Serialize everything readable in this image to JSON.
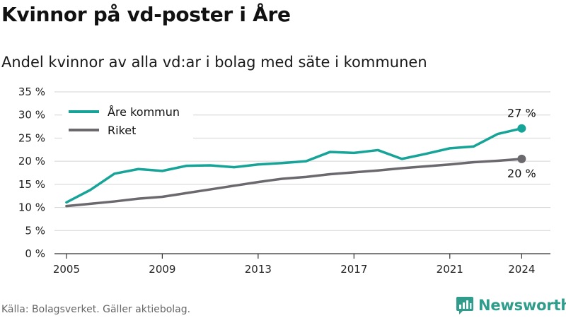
{
  "title": "Kvinnor på vd-poster i Åre",
  "subtitle": "Andel kvinnor av alla vd:ar i bolag med säte i kommunen",
  "source": "Källa: Bolagsverket. Gäller aktiebolag.",
  "brand": {
    "name": "Newsworthy",
    "logo_icon": "newsworthy-logo-icon"
  },
  "colors": {
    "are": "#16a398",
    "riket": "#6b686e",
    "grid": "#d4d4d4",
    "axis": "#333333",
    "brand": "#2f9c8c"
  },
  "chart_data": {
    "type": "line",
    "title": "Kvinnor på vd-poster i Åre",
    "subtitle": "Andel kvinnor av alla vd:ar i bolag med säte i kommunen",
    "xlabel": "",
    "ylabel": "",
    "x": [
      2005,
      2006,
      2007,
      2008,
      2009,
      2010,
      2011,
      2012,
      2013,
      2014,
      2015,
      2016,
      2017,
      2018,
      2019,
      2020,
      2021,
      2022,
      2023,
      2024
    ],
    "xticks": [
      2005,
      2009,
      2013,
      2017,
      2021,
      2024
    ],
    "xtick_labels": [
      "2005",
      "2009",
      "2013",
      "2017",
      "2021",
      "2024"
    ],
    "ylim": [
      0,
      35
    ],
    "yticks": [
      0,
      5,
      10,
      15,
      20,
      25,
      30,
      35
    ],
    "ytick_labels": [
      "0 %",
      "5 %",
      "10 %",
      "15 %",
      "20 %",
      "25 %",
      "30 %",
      "35 %"
    ],
    "grid": true,
    "legend_position": "top-left",
    "series": [
      {
        "name": "Åre kommun",
        "color": "#16a398",
        "values": [
          11.1,
          13.8,
          17.3,
          18.3,
          17.9,
          19.0,
          19.1,
          18.7,
          19.3,
          19.6,
          20.0,
          22.0,
          21.8,
          22.4,
          20.5,
          21.6,
          22.8,
          23.2,
          25.9,
          27.1
        ],
        "end_label": "27 %"
      },
      {
        "name": "Riket",
        "color": "#6b686e",
        "values": [
          10.3,
          10.8,
          11.3,
          11.9,
          12.3,
          13.1,
          13.9,
          14.7,
          15.5,
          16.2,
          16.6,
          17.2,
          17.6,
          18.0,
          18.5,
          18.9,
          19.3,
          19.8,
          20.1,
          20.5
        ],
        "end_label": "20 %"
      }
    ]
  }
}
